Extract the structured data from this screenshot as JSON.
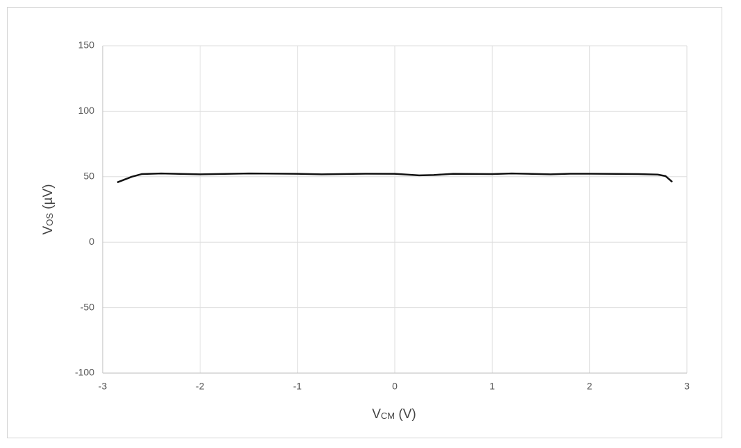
{
  "chart_data": {
    "type": "line",
    "xlabel": [
      "V",
      "CM",
      " (V)"
    ],
    "ylabel": [
      "V",
      "OS",
      " (µV)"
    ],
    "x": [
      -2.85,
      -2.7,
      -2.6,
      -2.4,
      -2.0,
      -1.5,
      -1.0,
      -0.75,
      -0.3,
      0,
      0.25,
      0.4,
      0.6,
      1.0,
      1.2,
      1.6,
      1.8,
      2.0,
      2.5,
      2.7,
      2.78,
      2.85
    ],
    "series": [
      {
        "color": "#111111",
        "values": [
          45.7,
          50,
          52,
          52.5,
          51.8,
          52.5,
          52.2,
          51.8,
          52.3,
          52.2,
          51,
          51.3,
          52.2,
          52,
          52.5,
          51.8,
          52.3,
          52.3,
          52,
          51.6,
          50.5,
          46
        ]
      }
    ],
    "xlim": [
      -3,
      3
    ],
    "xticks": [
      -3,
      -2,
      -1,
      0,
      1,
      2,
      3
    ],
    "ylim": [
      -100,
      150
    ],
    "yticks": [
      -100,
      -50,
      0,
      50,
      100,
      150
    ],
    "grid": true
  }
}
